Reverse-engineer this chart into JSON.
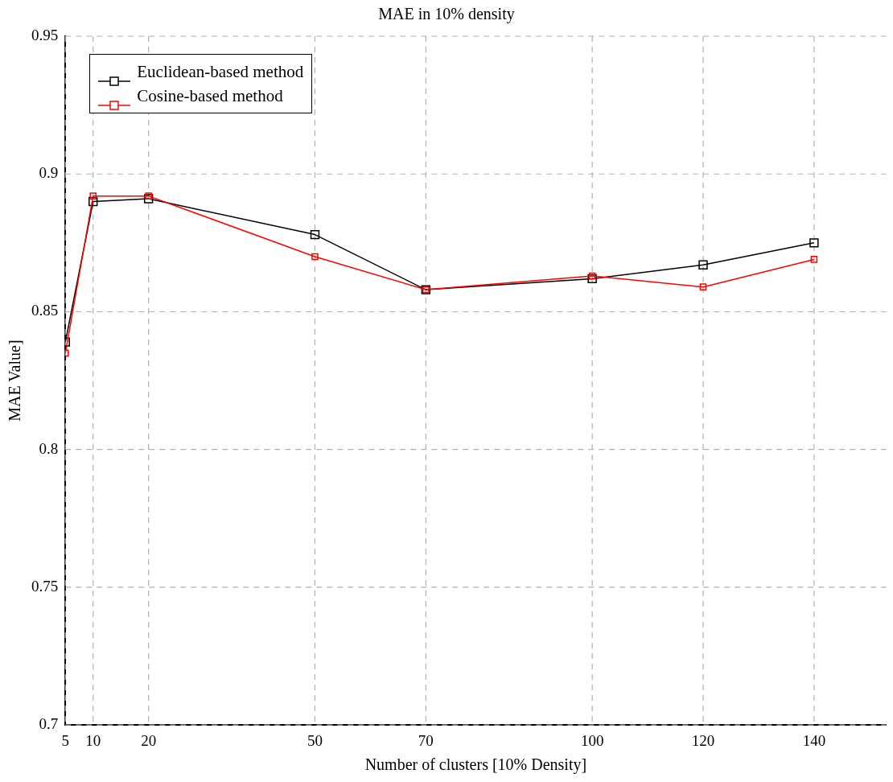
{
  "chart_data": {
    "type": "line",
    "title": "MAE in 10% density",
    "xlabel": "Number of clusters [10% Density]",
    "ylabel": "MAE Value]",
    "x": [
      5,
      10,
      20,
      50,
      70,
      100,
      120,
      140
    ],
    "series": [
      {
        "name": "Euclidean-based method",
        "color": "#000000",
        "values": [
          0.839,
          0.89,
          0.891,
          0.878,
          0.858,
          0.862,
          0.867,
          0.875
        ]
      },
      {
        "name": "Cosine-based method",
        "color": "#ff0000",
        "values": [
          0.835,
          0.892,
          0.892,
          0.87,
          0.858,
          0.863,
          0.859,
          0.869
        ]
      }
    ],
    "xlim": [
      5,
      153
    ],
    "xticks": [
      5,
      10,
      20,
      50,
      70,
      100,
      120,
      140
    ],
    "ylim": [
      0.7,
      0.95
    ],
    "yticks": [
      0.7,
      0.75,
      0.8,
      0.85,
      0.9,
      0.95
    ],
    "grid": true,
    "legend": "top left",
    "marker": "square",
    "line_style": "solid"
  }
}
